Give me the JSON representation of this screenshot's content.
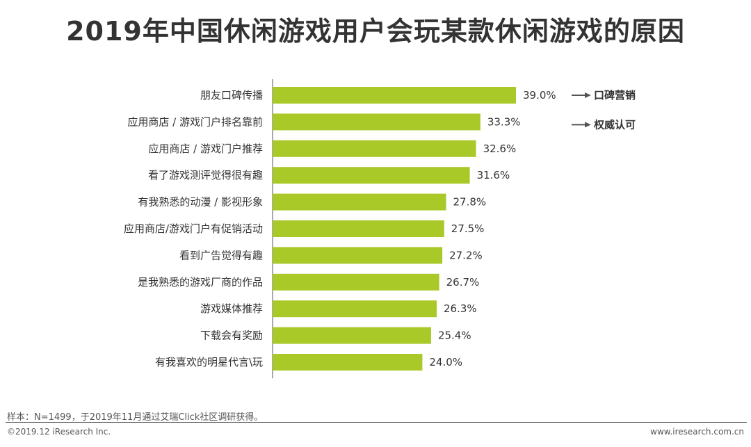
{
  "title": "2019年中国休闲游戏用户会玩某款休闲游戏的原因",
  "colors": {
    "bar": "#a8c928",
    "text": "#333333",
    "axis": "#555555",
    "arrow": "#555555"
  },
  "chart_data": {
    "type": "bar",
    "orientation": "horizontal",
    "categories": [
      "朋友口碑传播",
      "应用商店 / 游戏门户排名靠前",
      "应用商店 / 游戏门户推荐",
      "看了游戏测评觉得很有趣",
      "有我熟悉的动漫 / 影视形象",
      "应用商店/游戏门户有促销活动",
      "看到广告觉得有趣",
      "是我熟悉的游戏厂商的作品",
      "游戏媒体推荐",
      "下载会有奖励",
      "有我喜欢的明星代言\\玩"
    ],
    "values": [
      39.0,
      33.3,
      32.6,
      31.6,
      27.8,
      27.5,
      27.2,
      26.7,
      26.3,
      25.4,
      24.0
    ],
    "value_labels": [
      "39.0%",
      "33.3%",
      "32.6%",
      "31.6%",
      "27.8%",
      "27.5%",
      "27.2%",
      "26.7%",
      "26.3%",
      "25.4%",
      "24.0%"
    ],
    "xlim": [
      0,
      39.0
    ],
    "grid": false,
    "annotations": [
      {
        "category_index": 0,
        "text": "口碑营销"
      },
      {
        "category_index": 1,
        "text": "权威认可"
      }
    ]
  },
  "footer": {
    "note": "样本：N=1499，于2019年11月通过艾瑞Click社区调研获得。",
    "copyright": "©2019.12 iResearch Inc.",
    "website": "www.iresearch.com.cn"
  }
}
